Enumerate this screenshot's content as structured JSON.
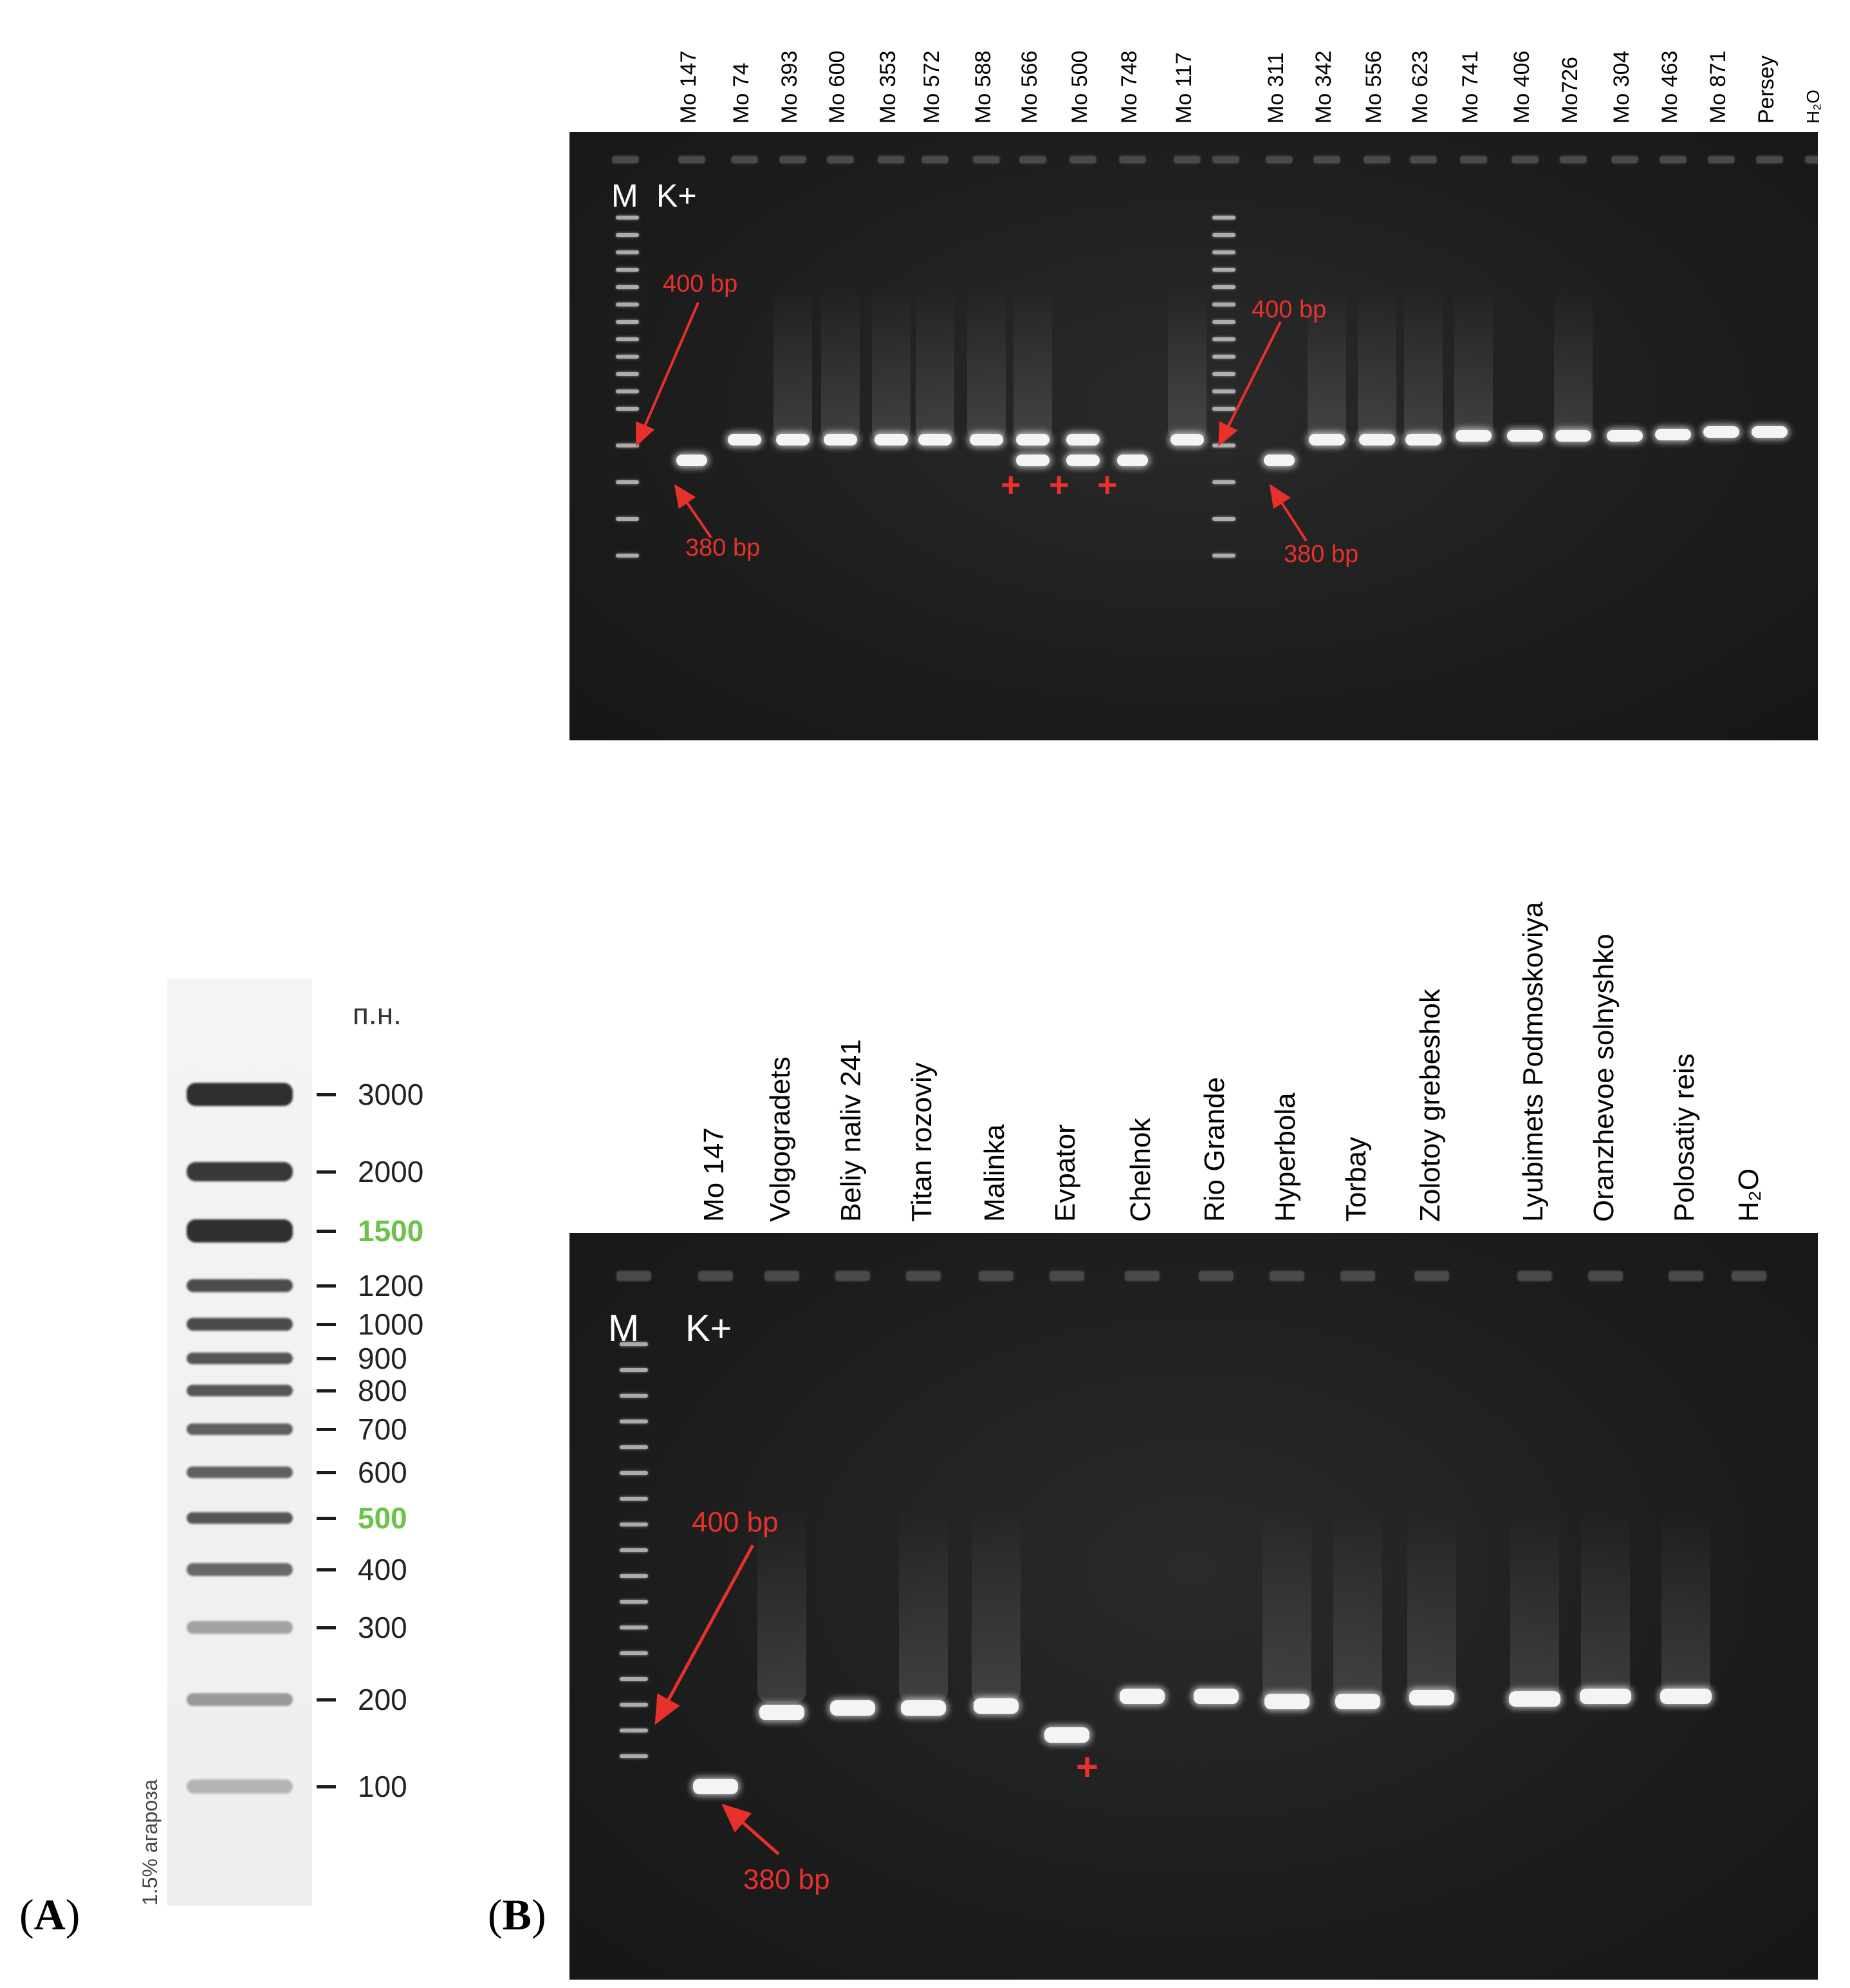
{
  "panel_a": {
    "letter": "A",
    "unit": "п.н.",
    "agarose": "1.5% агароза",
    "ladder": [
      {
        "label": "3000",
        "highlight": false
      },
      {
        "label": "2000",
        "highlight": false
      },
      {
        "label": "1500",
        "highlight": true
      },
      {
        "label": "1200",
        "highlight": false
      },
      {
        "label": "1000",
        "highlight": false
      },
      {
        "label": "900",
        "highlight": false
      },
      {
        "label": "800",
        "highlight": false
      },
      {
        "label": "700",
        "highlight": false
      },
      {
        "label": "600",
        "highlight": false
      },
      {
        "label": "500",
        "highlight": true
      },
      {
        "label": "400",
        "highlight": false
      },
      {
        "label": "300",
        "highlight": false
      },
      {
        "label": "200",
        "highlight": false
      },
      {
        "label": "100",
        "highlight": false
      }
    ],
    "highlight_color": "#6cc24a"
  },
  "panel_b": {
    "letter": "B",
    "top_gel": {
      "marker_label": "M",
      "control_label": "K+",
      "lanes": [
        "Mo 147",
        "Mo 74",
        "Mo 393",
        "Mo 600",
        "Mo 353",
        "Mo 572",
        "Mo 588",
        "Mo 566",
        "Mo 500",
        "Mo 748",
        "Mo 117",
        "Mo 311",
        "Mo 342",
        "Mo 556",
        "Mo 623",
        "Mo 741",
        "Mo 406",
        "Mo726",
        "Mo 304",
        "Mo 463",
        "Mo 871",
        "Persey",
        "H₂O"
      ],
      "annotations": {
        "upper": "400 bp",
        "lower": "380 bp",
        "plus": "+"
      },
      "positive_lanes": [
        "Mo 566",
        "Mo 500",
        "Mo 748"
      ]
    },
    "bottom_gel": {
      "marker_label": "M",
      "control_label": "K+",
      "lanes": [
        "Mo 147",
        "Volgogradets",
        "Beliy naliv 241",
        "Titan rozoviy",
        "Malinka",
        "Evpator",
        "Chelnok",
        "Rio Grande",
        "Hyperbola",
        "Torbay",
        "Zolotoy grebeshok",
        "Lyubimets Podmoskoviya",
        "Oranzhevoe solnyshko",
        "Polosatiy reis",
        "H₂O"
      ],
      "annotations": {
        "upper": "400 bp",
        "lower": "380 bp",
        "plus": "+"
      },
      "positive_lanes": [
        "Evpator"
      ]
    },
    "annotation_color": "#e8312b"
  }
}
